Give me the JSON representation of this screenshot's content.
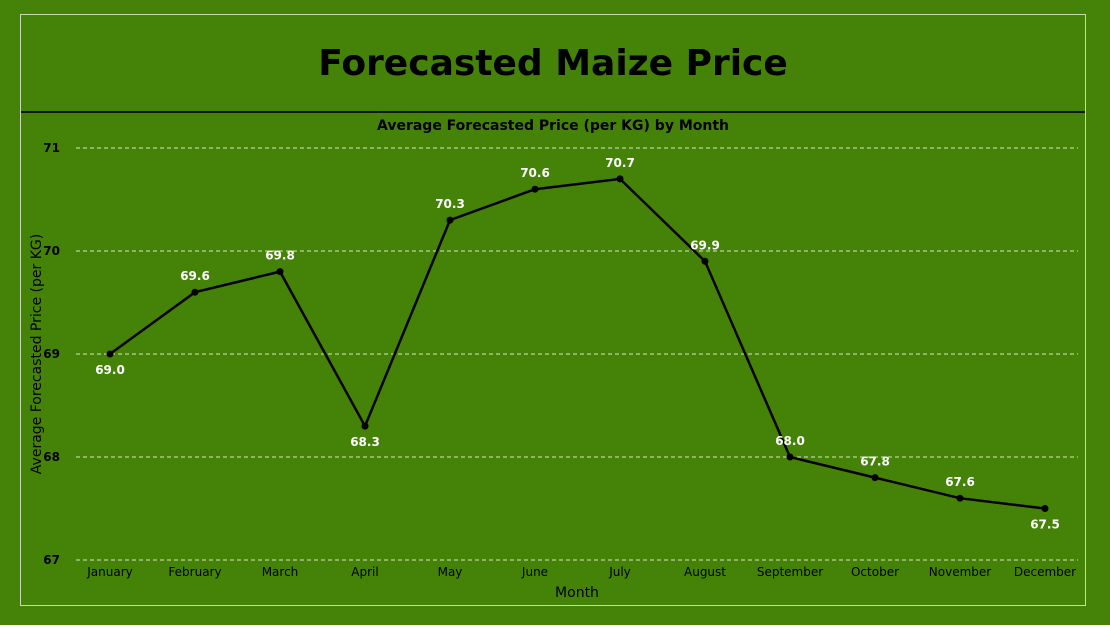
{
  "page": {
    "title": "Forecasted Maize Price"
  },
  "chart_data": {
    "type": "line",
    "title": "Average Forecasted Price (per KG) by Month",
    "xlabel": "Month",
    "ylabel": "Average Forecasted Price (per KG)",
    "categories": [
      "January",
      "February",
      "March",
      "April",
      "May",
      "June",
      "July",
      "August",
      "September",
      "October",
      "November",
      "December"
    ],
    "values": [
      69.0,
      69.6,
      69.8,
      68.3,
      70.3,
      70.6,
      70.7,
      69.9,
      68.0,
      67.8,
      67.6,
      67.5
    ],
    "data_labels": [
      "69.0",
      "69.6",
      "69.8",
      "68.3",
      "70.3",
      "70.6",
      "70.7",
      "69.9",
      "68.0",
      "67.8",
      "67.6",
      "67.5"
    ],
    "yticks": [
      67,
      68,
      69,
      70,
      71
    ],
    "ylim": [
      67,
      71
    ],
    "grid": true,
    "legend": "none",
    "colors": {
      "background": "#458208",
      "line": "#000000",
      "gridline": "#d8e8c0",
      "data_label": "#ffffff"
    }
  }
}
